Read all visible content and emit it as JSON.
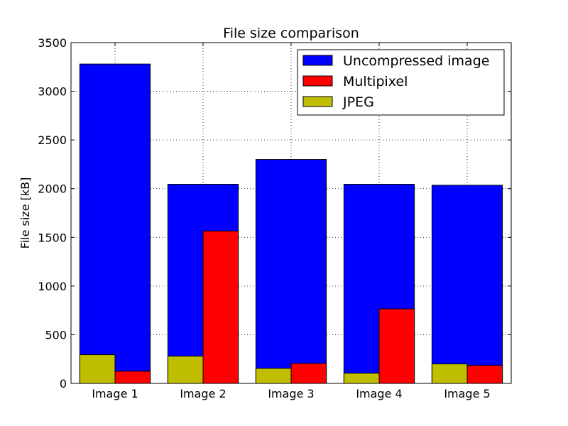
{
  "chart_data": {
    "type": "bar",
    "title": "File size comparison",
    "xlabel": "",
    "ylabel": "File size [kB]",
    "ylim": [
      0,
      3500
    ],
    "yticks": [
      0,
      500,
      1000,
      1500,
      2000,
      2500,
      3000,
      3500
    ],
    "categories": [
      "Image 1",
      "Image 2",
      "Image 3",
      "Image 4",
      "Image 5"
    ],
    "series": [
      {
        "name": "Uncompressed image",
        "color": "#0000ff",
        "values": [
          3280,
          2045,
          2300,
          2045,
          2035
        ]
      },
      {
        "name": "Multipixel",
        "color": "#ff0000",
        "values": [
          125,
          1565,
          205,
          765,
          185
        ]
      },
      {
        "name": "JPEG",
        "color": "#bfbf00",
        "values": [
          295,
          280,
          155,
          105,
          200
        ]
      }
    ],
    "grid": true,
    "legend_position": "top-right"
  }
}
